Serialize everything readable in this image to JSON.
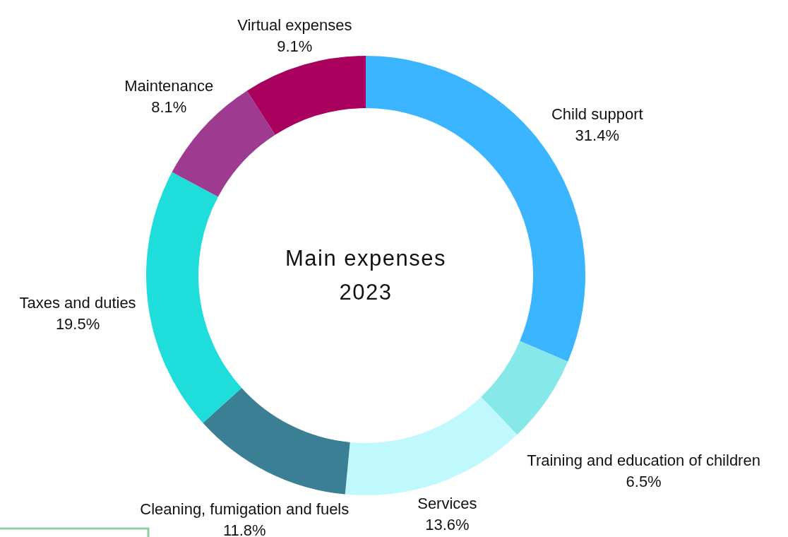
{
  "chart_data": {
    "type": "donut",
    "title": "Main expenses\n2023",
    "categories": [
      "Child support",
      "Training and education of children",
      "Services",
      "Cleaning, fumigation and fuels",
      "Taxes and duties",
      "Maintenance",
      "Virtual expenses"
    ],
    "values": [
      31.4,
      6.5,
      13.6,
      11.8,
      19.5,
      8.1,
      9.1
    ],
    "colors": [
      "#3bb5ff",
      "#86e8e8",
      "#bff9fd",
      "#3a7f93",
      "#1edddb",
      "#9e3b91",
      "#a8005c"
    ],
    "value_labels": [
      "31.4%",
      "6.5%",
      "13.6%",
      "11.8%",
      "19.5%",
      "8.1%",
      "9.1%"
    ]
  }
}
